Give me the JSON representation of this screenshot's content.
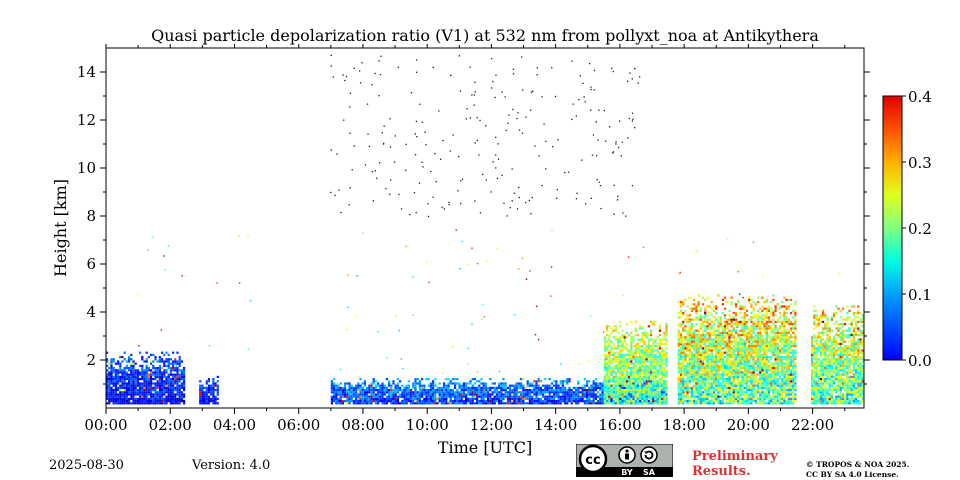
{
  "chart_data": {
    "type": "heatmap",
    "title": "Quasi particle depolarization ratio (V1) at 532 nm from pollyxt_noa at Antikythera",
    "xlabel": "Time [UTC]",
    "ylabel": "Height [km]",
    "x_ticks": [
      "00:00",
      "02:00",
      "04:00",
      "06:00",
      "08:00",
      "10:00",
      "12:00",
      "14:00",
      "16:00",
      "18:00",
      "20:00",
      "22:00"
    ],
    "xlim_hours": [
      0,
      23.6
    ],
    "y_ticks": [
      2,
      4,
      6,
      8,
      10,
      12,
      14
    ],
    "ylim_km": [
      0,
      15
    ],
    "colorbar": {
      "ticks": [
        "0.0",
        "0.1",
        "0.2",
        "0.3",
        "0.4"
      ],
      "range": [
        0.0,
        0.4
      ],
      "colormap": "jet"
    },
    "data_gaps_hours": [
      [
        2.4,
        2.9
      ],
      [
        3.5,
        4.0
      ],
      [
        4.5,
        6.9
      ],
      [
        17.45,
        17.8
      ],
      [
        21.45,
        21.95
      ]
    ],
    "regions": [
      {
        "t_start": 0.0,
        "t_end": 2.4,
        "h_top": 2.3,
        "value_range": [
          0.02,
          0.12
        ]
      },
      {
        "t_start": 2.9,
        "t_end": 3.5,
        "h_top": 1.3,
        "value_range": [
          0.03,
          0.1
        ]
      },
      {
        "t_start": 7.0,
        "t_end": 17.45,
        "h_top": 1.2,
        "value_range": [
          0.03,
          0.15
        ]
      },
      {
        "t_start": 15.5,
        "t_end": 17.45,
        "h_top": 3.6,
        "value_range": [
          0.12,
          0.3
        ]
      },
      {
        "t_start": 17.8,
        "t_end": 21.45,
        "h_top": 4.7,
        "value_range": [
          0.1,
          0.35
        ]
      },
      {
        "t_start": 21.95,
        "t_end": 23.6,
        "h_top": 4.2,
        "value_range": [
          0.1,
          0.33
        ]
      }
    ]
  },
  "footer": {
    "date": "2025-08-30",
    "version": "Version: 4.0",
    "preliminary_line1": "Preliminary",
    "preliminary_line2": "Results.",
    "license_line1": "© TROPOS & NOA 2025.",
    "license_line2": "CC BY SA 4.0 License.",
    "badge_text": [
      "cc",
      "BY",
      "SA"
    ]
  }
}
